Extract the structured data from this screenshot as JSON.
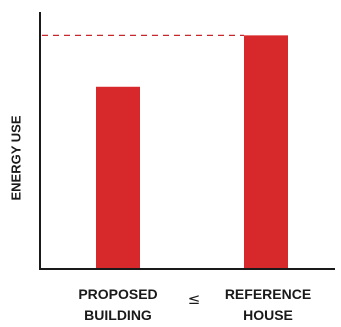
{
  "chart_data": {
    "type": "bar",
    "title": "",
    "xlabel": "",
    "ylabel": "ENERGY USE",
    "categories": [
      {
        "line1": "PROPOSED",
        "line2": "BUILDING"
      },
      {
        "line1": "REFERENCE",
        "line2": "HOUSE"
      }
    ],
    "values": [
      78,
      100
    ],
    "ylim": [
      0,
      110
    ],
    "relation_symbol": "≤",
    "reference_line": {
      "value": 100,
      "style": "dashed"
    },
    "grid": false,
    "colors": {
      "bar": "#d7282b",
      "axis": "#1a1a1a",
      "reference_line": "#c8282b"
    }
  }
}
